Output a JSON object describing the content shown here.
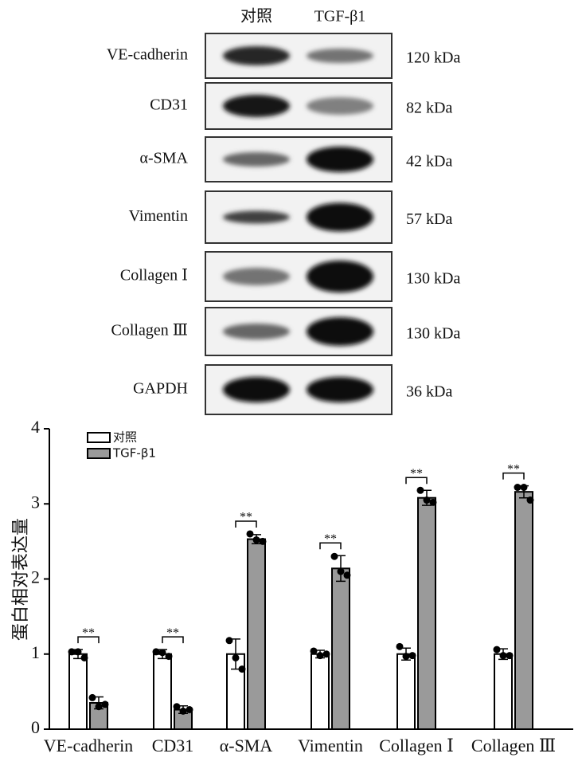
{
  "blot": {
    "lanes": [
      "对照",
      "TGF-β1"
    ],
    "rows": [
      {
        "protein": "VE-cadherin",
        "size": "120 kDa"
      },
      {
        "protein": "CD31",
        "size": "82 kDa"
      },
      {
        "protein": "α-SMA",
        "size": "42 kDa"
      },
      {
        "protein": "Vimentin",
        "size": "57 kDa"
      },
      {
        "protein": "Collagen Ⅰ",
        "size": "130 kDa"
      },
      {
        "protein": "Collagen Ⅲ",
        "size": "130 kDa"
      },
      {
        "protein": "GAPDH",
        "size": "36 kDa"
      }
    ]
  },
  "chart_data": {
    "type": "bar",
    "ylabel": "蛋白相对表达量",
    "categories": [
      "VE-cadherin",
      "CD31",
      "α-SMA",
      "Vimentin",
      "Collagen Ⅰ",
      "Collagen Ⅲ"
    ],
    "ylim": [
      0,
      4
    ],
    "yticks": [
      0,
      1,
      2,
      3,
      4
    ],
    "legend": "upper left",
    "series": [
      {
        "name": "对照",
        "color": "#ffffff",
        "values": [
          1.0,
          1.0,
          1.0,
          1.0,
          1.0,
          1.0
        ],
        "errors": [
          0.06,
          0.06,
          0.2,
          0.05,
          0.08,
          0.07
        ],
        "points": [
          [
            1.03,
            1.03,
            0.95
          ],
          [
            1.03,
            1.02,
            0.97
          ],
          [
            1.18,
            0.95,
            0.8
          ],
          [
            1.04,
            0.98,
            1.0
          ],
          [
            1.1,
            0.97,
            0.98
          ],
          [
            1.06,
            0.98,
            0.98
          ]
        ]
      },
      {
        "name": "TGF-β1",
        "color": "#9a9a9a",
        "values": [
          0.35,
          0.26,
          2.53,
          2.14,
          3.08,
          3.16
        ],
        "errors": [
          0.08,
          0.05,
          0.06,
          0.17,
          0.1,
          0.08
        ],
        "points": [
          [
            0.42,
            0.3,
            0.33
          ],
          [
            0.3,
            0.24,
            0.26
          ],
          [
            2.6,
            2.52,
            2.5
          ],
          [
            2.3,
            2.1,
            2.05
          ],
          [
            3.18,
            3.05,
            3.02
          ],
          [
            3.22,
            3.22,
            3.05
          ]
        ]
      }
    ],
    "significance": [
      "**",
      "**",
      "**",
      "**",
      "**",
      "**"
    ]
  }
}
